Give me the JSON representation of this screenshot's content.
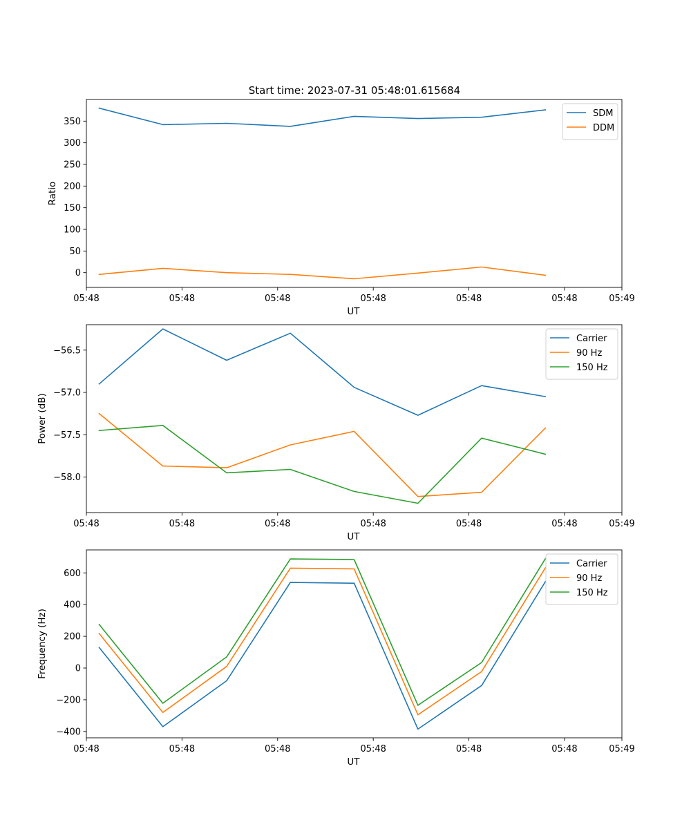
{
  "figure": {
    "suptitle": "Start time: 2023-07-31 05:48:01.615684"
  },
  "chart_data": [
    {
      "type": "line",
      "title": "Start time: 2023-07-31 05:48:01.615684",
      "xlabel": "UT",
      "ylabel": "Ratio",
      "x": [
        1,
        2,
        3,
        4,
        5,
        6,
        7,
        8
      ],
      "xlim": [
        0.8,
        9.2
      ],
      "xticks": [
        0.8,
        2.3,
        3.8,
        5.3,
        6.8,
        8.3,
        9.2
      ],
      "xtick_labels": [
        "05:48",
        "05:48",
        "05:48",
        "05:48",
        "05:48",
        "05:48",
        "05:49"
      ],
      "ylim": [
        -34,
        400
      ],
      "yticks": [
        0,
        50,
        100,
        150,
        200,
        250,
        300,
        350
      ],
      "ytick_labels": [
        "0",
        "50",
        "100",
        "150",
        "200",
        "250",
        "300",
        "350"
      ],
      "legend": "top-right",
      "series": [
        {
          "name": "SDM",
          "color": "#1f77b4",
          "values": [
            380,
            342,
            345,
            338,
            361,
            356,
            359,
            376
          ]
        },
        {
          "name": "DDM",
          "color": "#ff7f0e",
          "values": [
            -4,
            10,
            0,
            -4,
            -14,
            -1,
            13,
            -6
          ]
        }
      ]
    },
    {
      "type": "line",
      "title": "",
      "xlabel": "UT",
      "ylabel": "Power (dB)",
      "x": [
        1,
        2,
        3,
        4,
        5,
        6,
        7,
        8
      ],
      "xlim": [
        0.8,
        9.2
      ],
      "xticks": [
        0.8,
        2.3,
        3.8,
        5.3,
        6.8,
        8.3,
        9.2
      ],
      "xtick_labels": [
        "05:48",
        "05:48",
        "05:48",
        "05:48",
        "05:48",
        "05:48",
        "05:49"
      ],
      "ylim": [
        -58.42,
        -56.2
      ],
      "yticks": [
        -58.0,
        -57.5,
        -57.0,
        -56.5
      ],
      "ytick_labels": [
        "−58.0",
        "−57.5",
        "−57.0",
        "−56.5"
      ],
      "legend": "top-right",
      "series": [
        {
          "name": "Carrier",
          "color": "#1f77b4",
          "values": [
            -56.9,
            -56.25,
            -56.62,
            -56.3,
            -56.94,
            -57.27,
            -56.92,
            -57.05
          ]
        },
        {
          "name": "90 Hz",
          "color": "#ff7f0e",
          "values": [
            -57.25,
            -57.87,
            -57.89,
            -57.62,
            -57.46,
            -58.23,
            -58.18,
            -57.42
          ]
        },
        {
          "name": "150 Hz",
          "color": "#2ca02c",
          "values": [
            -57.45,
            -57.39,
            -57.95,
            -57.91,
            -58.17,
            -58.31,
            -57.54,
            -57.73
          ]
        }
      ]
    },
    {
      "type": "line",
      "title": "",
      "xlabel": "UT",
      "ylabel": "Frequency (Hz)",
      "x": [
        1,
        2,
        3,
        4,
        5,
        6,
        7,
        8
      ],
      "xlim": [
        0.8,
        9.2
      ],
      "xticks": [
        0.8,
        2.3,
        3.8,
        5.3,
        6.8,
        8.3,
        9.2
      ],
      "xtick_labels": [
        "05:48",
        "05:48",
        "05:48",
        "05:48",
        "05:48",
        "05:48",
        "05:49"
      ],
      "ylim": [
        -440,
        745
      ],
      "yticks": [
        -400,
        -200,
        0,
        200,
        400,
        600
      ],
      "ytick_labels": [
        "−400",
        "−200",
        "0",
        "200",
        "400",
        "600"
      ],
      "legend": "top-right",
      "series": [
        {
          "name": "Carrier",
          "color": "#1f77b4",
          "values": [
            130,
            -370,
            -80,
            540,
            535,
            -385,
            -110,
            545
          ]
        },
        {
          "name": "90 Hz",
          "color": "#ff7f0e",
          "values": [
            218,
            -280,
            10,
            630,
            625,
            -295,
            -22,
            632
          ]
        },
        {
          "name": "150 Hz",
          "color": "#2ca02c",
          "values": [
            275,
            -222,
            70,
            688,
            684,
            -235,
            35,
            690
          ]
        }
      ]
    }
  ]
}
